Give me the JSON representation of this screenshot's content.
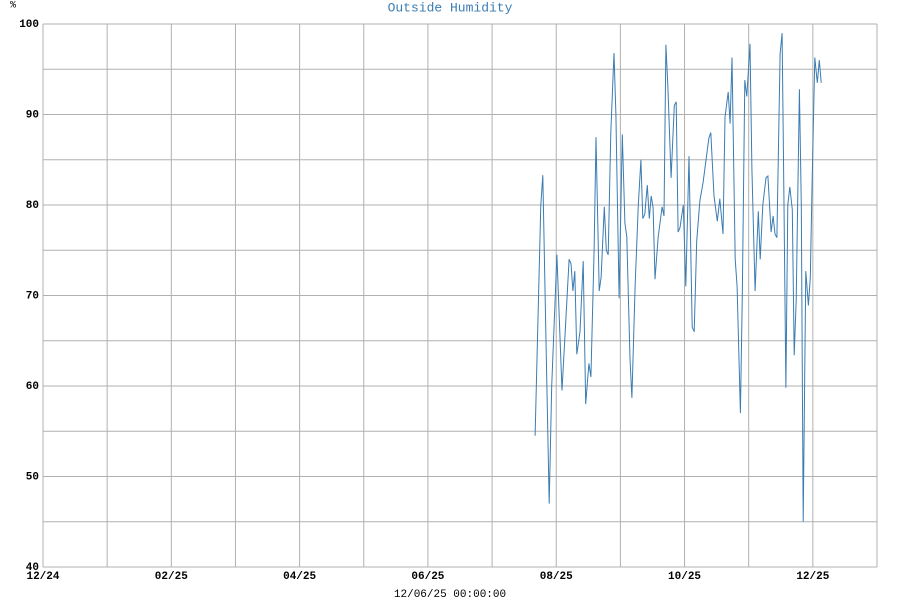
{
  "chart_data": {
    "type": "line",
    "title": "Outside Humidity",
    "y_label": "%",
    "x_label": "12/06/25 00:00:00",
    "x": [
      7.67,
      7.76,
      7.79,
      7.84,
      7.89,
      7.93,
      8.01,
      8.09,
      8.14,
      8.2,
      8.23,
      8.26,
      8.29,
      8.32,
      8.37,
      8.42,
      8.46,
      8.51,
      8.54,
      8.59,
      8.62,
      8.67,
      8.7,
      8.75,
      8.78,
      8.81,
      8.85,
      8.9,
      8.93,
      8.98,
      9.03,
      9.07,
      9.1,
      9.15,
      9.18,
      9.23,
      9.28,
      9.32,
      9.35,
      9.38,
      9.42,
      9.45,
      9.48,
      9.51,
      9.54,
      9.59,
      9.65,
      9.68,
      9.71,
      9.74,
      9.79,
      9.84,
      9.87,
      9.9,
      9.93,
      9.98,
      10.02,
      10.07,
      10.12,
      10.15,
      10.19,
      10.24,
      10.29,
      10.34,
      10.38,
      10.41,
      10.46,
      10.51,
      10.55,
      10.6,
      10.63,
      10.68,
      10.71,
      10.74,
      10.79,
      10.82,
      10.87,
      10.9,
      10.94,
      10.97,
      11.02,
      11.05,
      11.1,
      11.15,
      11.18,
      11.22,
      11.27,
      11.3,
      11.35,
      11.38,
      11.41,
      11.44,
      11.49,
      11.52,
      11.55,
      11.58,
      11.61,
      11.64,
      11.68,
      11.71,
      11.74,
      11.79,
      11.82,
      11.85,
      11.89,
      11.93,
      11.96,
      11.99,
      12.03,
      12.07,
      12.1,
      12.13
    ],
    "series": [
      {
        "name": "Outside Humidity",
        "color": "#3b7cb2",
        "values": [
          54.5,
          80,
          83.3,
          65,
          47,
          60,
          74.5,
          59.5,
          66,
          74,
          73.5,
          70.5,
          72.7,
          63.5,
          66,
          73.8,
          58,
          62.5,
          61,
          75,
          87.5,
          70.5,
          72,
          79.8,
          75,
          74.5,
          88,
          96.8,
          90,
          69.7,
          87.8,
          78,
          76.5,
          63,
          58.7,
          71,
          80,
          85,
          78.5,
          79,
          82.2,
          78.5,
          81,
          79.7,
          71.8,
          76.5,
          79.8,
          78.8,
          97.7,
          93,
          83,
          91,
          91.4,
          77,
          77.5,
          80,
          71,
          85.4,
          66.5,
          66,
          76,
          80.5,
          82.5,
          85.3,
          87.4,
          88,
          81,
          78.2,
          80.7,
          76.8,
          89.7,
          92.5,
          89,
          96.3,
          74,
          71,
          57,
          70,
          93.8,
          92,
          97.8,
          84,
          70.5,
          79.3,
          74,
          80,
          83,
          83.2,
          77,
          78.8,
          76.8,
          76.4,
          96.7,
          99,
          80,
          59.8,
          80,
          82,
          79.5,
          63.4,
          69.5,
          92.8,
          80,
          45,
          72.7,
          68.9,
          72,
          83,
          96.3,
          93.5,
          96,
          93.5
        ]
      }
    ],
    "xlim": [
      0,
      13
    ],
    "xticks": [
      {
        "value": 0,
        "label": "12/24"
      },
      {
        "value": 2,
        "label": "02/25"
      },
      {
        "value": 4,
        "label": "04/25"
      },
      {
        "value": 6,
        "label": "06/25"
      },
      {
        "value": 8,
        "label": "08/25"
      },
      {
        "value": 10,
        "label": "10/25"
      },
      {
        "value": 12,
        "label": "12/25"
      }
    ],
    "x_minor_ticks": [
      1,
      3,
      5,
      7,
      9,
      11,
      13
    ],
    "ylim": [
      40,
      100
    ],
    "yticks": [
      40,
      50,
      60,
      70,
      80,
      90,
      100
    ],
    "y_minor_ticks": [
      45,
      55,
      65,
      75,
      85,
      95
    ],
    "grid": true
  }
}
